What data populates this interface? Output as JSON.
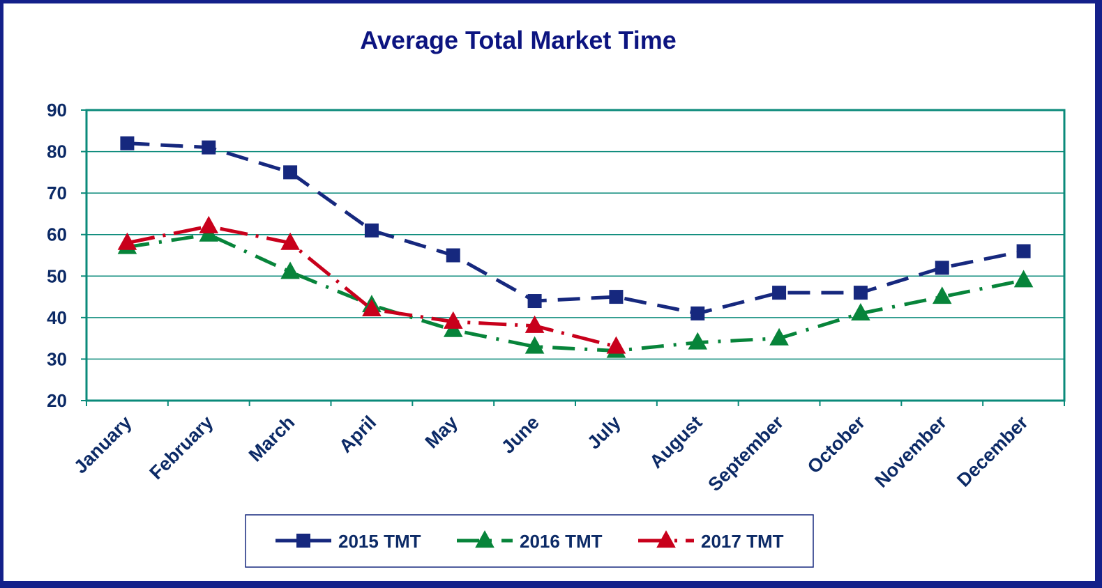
{
  "chart_data": {
    "type": "line",
    "title": "Average Total Market Time",
    "xlabel": "",
    "ylabel": "",
    "categories": [
      "January",
      "February",
      "March",
      "April",
      "May",
      "June",
      "July",
      "August",
      "September",
      "October",
      "November",
      "December"
    ],
    "y_ticks": [
      "20",
      "30",
      "40",
      "50",
      "60",
      "70",
      "80",
      "90"
    ],
    "ylim": [
      20,
      90
    ],
    "grid": "horizontal",
    "legend_position": "bottom",
    "series": [
      {
        "name": "2015 TMT",
        "color": "#16287e",
        "marker": "square",
        "line_style": "dashed",
        "values": [
          82,
          81,
          75,
          61,
          55,
          44,
          45,
          41,
          46,
          46,
          52,
          56
        ]
      },
      {
        "name": "2016 TMT",
        "color": "#07843a",
        "marker": "triangle",
        "line_style": "dash-dot",
        "values": [
          57,
          60,
          51,
          43,
          37,
          33,
          32,
          34,
          35,
          41,
          45,
          49
        ]
      },
      {
        "name": "2017 TMT",
        "color": "#c8001b",
        "marker": "triangle",
        "line_style": "long-dash-dot",
        "values": [
          58,
          62,
          58,
          42,
          39,
          38,
          33,
          null,
          null,
          null,
          null,
          null
        ]
      }
    ]
  }
}
